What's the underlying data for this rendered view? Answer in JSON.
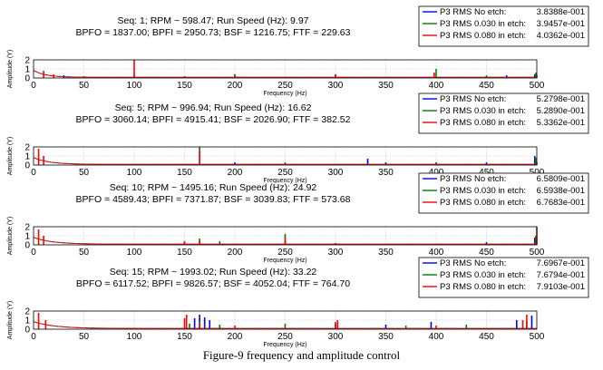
{
  "caption": "Figure-9 frequency and amplitude control",
  "colors": {
    "no_etch": "#0000ff",
    "etch_030": "#008000",
    "etch_080": "#ff0000",
    "grid": "#bfbfbf"
  },
  "chart_data": [
    {
      "type": "line",
      "title": "Seq: 1; RPM ~ 598.47; Run Speed (Hz): 9.97",
      "subtitle": "BPFO = 1837.00; BPFI = 2950.73; BSF = 1216.75; FTF = 229.63",
      "xlabel": "Frequency (Hz)",
      "ylabel": "Amplitude (Y)",
      "xlim": [
        0,
        500
      ],
      "ylim": [
        0,
        2
      ],
      "xticks": [
        "0",
        "50",
        "100",
        "150",
        "200",
        "250",
        "300",
        "350",
        "400",
        "450",
        "500"
      ],
      "yticks": [
        "0",
        "1",
        "2"
      ],
      "legend": {
        "placement": "top-right",
        "entries": [
          {
            "name": "P3 RMS No etch:",
            "value": "3.8388e-001"
          },
          {
            "name": "P3 RMS 0.030 in etch:",
            "value": "3.9457e-001"
          },
          {
            "name": "P3 RMS 0.080 in etch:",
            "value": "4.0362e-001"
          }
        ]
      },
      "series": [
        {
          "name": "P3 RMS No etch",
          "peaks": [
            [
              30,
              0.3
            ],
            [
              100,
              0.3
            ],
            [
              200,
              0.4
            ],
            [
              300,
              0.3
            ],
            [
              398,
              0.5
            ],
            [
              470,
              0.3
            ],
            [
              498,
              0.4
            ]
          ]
        },
        {
          "name": "P3 RMS 0.030 in etch",
          "peaks": [
            [
              50,
              0.2
            ],
            [
              150,
              0.2
            ],
            [
              200,
              0.3
            ],
            [
              300,
              0.4
            ],
            [
              400,
              1.0
            ],
            [
              450,
              0.3
            ],
            [
              499,
              0.6
            ]
          ]
        },
        {
          "name": "P3 RMS 0.080 in etch",
          "peaks": [
            [
              10,
              0.8
            ],
            [
              20,
              0.4
            ],
            [
              100,
              2.0
            ],
            [
              200,
              0.2
            ],
            [
              300,
              0.4
            ],
            [
              398,
              0.6
            ],
            [
              500,
              0.3
            ]
          ]
        }
      ]
    },
    {
      "type": "line",
      "title": "Seq: 5; RPM ~ 996.94; Run Speed (Hz): 16.62",
      "subtitle": "BPFO = 3060.14; BPFI = 4915.41; BSF = 2026.90; FTF = 382.52",
      "xlabel": "Frequency (Hz)",
      "ylabel": "Amplitude (Y)",
      "xlim": [
        0,
        500
      ],
      "ylim": [
        0,
        2
      ],
      "xticks": [
        "0",
        "50",
        "100",
        "150",
        "200",
        "250",
        "300",
        "350",
        "400",
        "450",
        "500"
      ],
      "yticks": [
        "0",
        "1",
        "2"
      ],
      "legend": {
        "placement": "top-right",
        "entries": [
          {
            "name": "P3 RMS No etch:",
            "value": "5.2798e-001"
          },
          {
            "name": "P3 RMS 0.030 in etch:",
            "value": "5.2890e-001"
          },
          {
            "name": "P3 RMS 0.080 in etch:",
            "value": "5.3362e-001"
          }
        ]
      },
      "series": [
        {
          "name": "P3 RMS No etch",
          "peaks": [
            [
              200,
              0.3
            ],
            [
              332,
              0.7
            ],
            [
              350,
              0.3
            ],
            [
              400,
              0.3
            ],
            [
              450,
              0.3
            ],
            [
              498,
              1.0
            ]
          ]
        },
        {
          "name": "P3 RMS 0.030 in etch",
          "peaks": [
            [
              165,
              2.0
            ],
            [
              250,
              0.3
            ],
            [
              400,
              0.3
            ],
            [
              499,
              0.8
            ]
          ]
        },
        {
          "name": "P3 RMS 0.080 in etch",
          "peaks": [
            [
              5,
              1.8
            ],
            [
              10,
              1.0
            ],
            [
              165,
              1.6
            ],
            [
              250,
              0.2
            ],
            [
              500,
              0.3
            ]
          ]
        }
      ]
    },
    {
      "type": "line",
      "title": "Seq: 10; RPM ~ 1495.16; Run Speed (Hz): 24.92",
      "subtitle": "BPFO = 4589.43; BPFI = 7371.87; BSF = 3039.83; FTF = 573.68",
      "xlabel": "Frequency (Hz)",
      "ylabel": "Amplitude (Y)",
      "xlim": [
        0,
        500
      ],
      "ylim": [
        0,
        2
      ],
      "xticks": [
        "0",
        "50",
        "100",
        "150",
        "200",
        "250",
        "300",
        "350",
        "400",
        "450",
        "500"
      ],
      "yticks": [
        "0",
        "1",
        "2"
      ],
      "legend": {
        "placement": "top-right",
        "entries": [
          {
            "name": "P3 RMS No etch:",
            "value": "6.5809e-001"
          },
          {
            "name": "P3 RMS 0.030 in etch:",
            "value": "6.5938e-001"
          },
          {
            "name": "P3 RMS 0.080 in etch:",
            "value": "6.7683e-001"
          }
        ]
      },
      "series": [
        {
          "name": "P3 RMS No etch",
          "peaks": [
            [
              150,
              0.3
            ],
            [
              250,
              0.4
            ],
            [
              300,
              0.2
            ],
            [
              450,
              0.3
            ],
            [
              498,
              0.8
            ]
          ]
        },
        {
          "name": "P3 RMS 0.030 in etch",
          "peaks": [
            [
              165,
              0.7
            ],
            [
              185,
              0.4
            ],
            [
              250,
              1.2
            ],
            [
              499,
              1.0
            ]
          ]
        },
        {
          "name": "P3 RMS 0.080 in etch",
          "peaks": [
            [
              5,
              1.7
            ],
            [
              10,
              1.0
            ],
            [
              150,
              0.4
            ],
            [
              165,
              0.5
            ],
            [
              250,
              0.8
            ],
            [
              500,
              2.0
            ]
          ]
        }
      ]
    },
    {
      "type": "line",
      "title": "Seq: 15; RPM ~ 1993.02; Run Speed (Hz): 33.22",
      "subtitle": "BPFO = 6117.52; BPFI = 9826.57; BSF = 4052.04; FTF = 764.70",
      "xlabel": "Frequency (Hz)",
      "ylabel": "Amplitude (Y)",
      "xlim": [
        0,
        500
      ],
      "ylim": [
        0,
        2
      ],
      "xticks": [
        "0",
        "50",
        "100",
        "150",
        "200",
        "250",
        "300",
        "350",
        "400",
        "450",
        "500"
      ],
      "yticks": [
        "0",
        "1",
        "2"
      ],
      "legend": {
        "placement": "top-right",
        "entries": [
          {
            "name": "P3 RMS No etch:",
            "value": "7.6967e-001"
          },
          {
            "name": "P3 RMS 0.030 in etch:",
            "value": "7.6794e-001"
          },
          {
            "name": "P3 RMS 0.080 in etch:",
            "value": "7.9103e-001"
          }
        ]
      },
      "series": [
        {
          "name": "P3 RMS No etch",
          "peaks": [
            [
              160,
              1.2
            ],
            [
              165,
              1.6
            ],
            [
              170,
              1.3
            ],
            [
              175,
              1.0
            ],
            [
              300,
              0.6
            ],
            [
              350,
              0.5
            ],
            [
              395,
              0.8
            ],
            [
              480,
              1.0
            ],
            [
              495,
              1.5
            ]
          ]
        },
        {
          "name": "P3 RMS 0.030 in etch",
          "peaks": [
            [
              155,
              0.6
            ],
            [
              165,
              0.8
            ],
            [
              185,
              0.5
            ],
            [
              250,
              0.6
            ],
            [
              370,
              0.4
            ],
            [
              430,
              0.5
            ],
            [
              490,
              0.9
            ]
          ]
        },
        {
          "name": "P3 RMS 0.080 in etch",
          "peaks": [
            [
              5,
              1.8
            ],
            [
              12,
              1.0
            ],
            [
              150,
              1.2
            ],
            [
              152,
              1.6
            ],
            [
              165,
              0.7
            ],
            [
              200,
              0.4
            ],
            [
              300,
              0.8
            ],
            [
              302,
              1.0
            ],
            [
              400,
              0.4
            ],
            [
              486,
              1.0
            ],
            [
              490,
              1.6
            ]
          ]
        }
      ]
    }
  ]
}
